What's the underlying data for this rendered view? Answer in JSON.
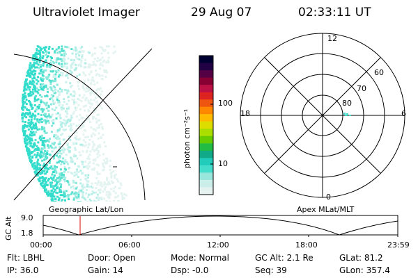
{
  "header": {
    "instrument": "Ultraviolet Imager",
    "date": "29 Aug 07",
    "time": "02:33:11  UT"
  },
  "polar_plot": {
    "mlt_labels": [
      "12",
      "18",
      "6",
      "0"
    ],
    "lat_labels": [
      "60",
      "70",
      "80"
    ]
  },
  "colorbar": {
    "unit_label": "photon cm⁻²s⁻¹",
    "tick_labels": [
      "100",
      "10"
    ],
    "colors": [
      "#000033",
      "#220044",
      "#550044",
      "#880033",
      "#bb1144",
      "#dd2222",
      "#ee5511",
      "#ff8800",
      "#ffbb00",
      "#dddd00",
      "#aadd00",
      "#66cc00",
      "#22bb44",
      "#11aa88",
      "#22ccbb",
      "#44ddcc",
      "#99e6dd",
      "#cceeea",
      "#e6f2f0"
    ]
  },
  "timeline": {
    "y_axis_label": "GC Alt",
    "y_ticks": [
      "9.0",
      "1.8"
    ],
    "left_title": "Geographic Lat/Lon",
    "right_title": "Apex  MLat/MLT",
    "x_ticks": [
      "00:00",
      "06:00",
      "12:00",
      "18:00",
      "23:59"
    ],
    "marker_color": "#dd0000"
  },
  "info": {
    "flt": "Flt: LBHL",
    "ip": "IP: 36.0",
    "door": "Door: Open",
    "gain": "Gain: 14",
    "mode": "Mode: Normal",
    "dsp": "Dsp:   -0.0",
    "gc_alt": "GC Alt: 2.1 Re",
    "seq": "Seq: 39",
    "glat": "GLat:  81.2",
    "glon": "GLon: 357.4"
  }
}
